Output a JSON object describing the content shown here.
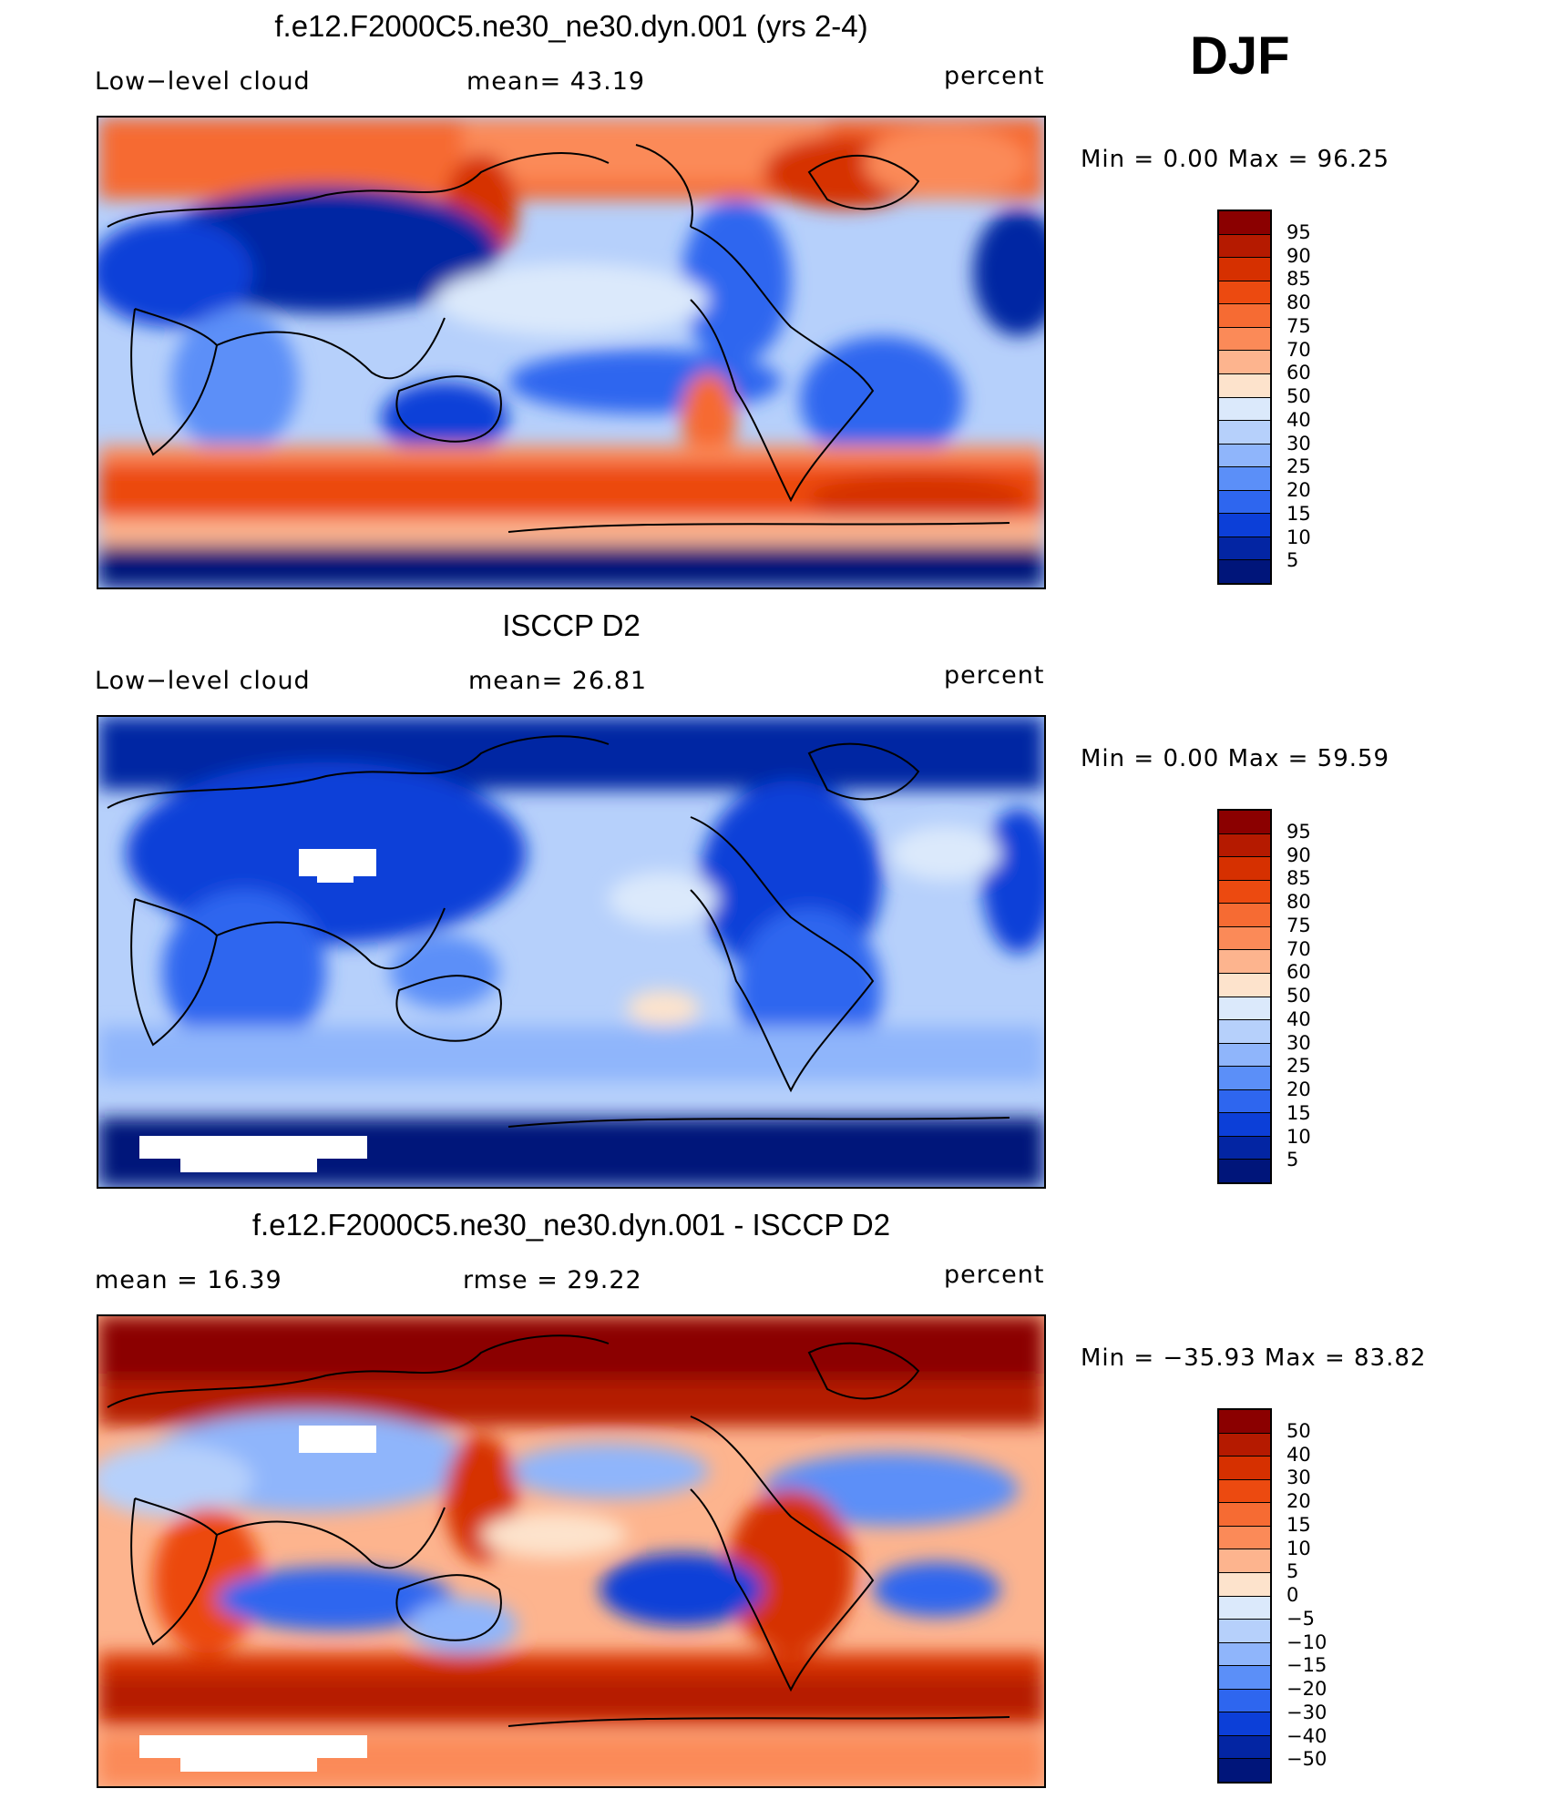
{
  "season": "DJF",
  "panels": [
    {
      "title": "f.e12.F2000C5.ne30_ne30.dyn.001 (yrs 2-4)",
      "left_label": "Low−level cloud",
      "mid_label": "mean=   43.19",
      "right_label": "percent",
      "minmax": "Min =     0.00  Max =    96.25"
    },
    {
      "title": "ISCCP D2",
      "left_label": "Low−level cloud",
      "mid_label": "mean=   26.81",
      "right_label": "percent",
      "minmax": "Min =     0.00  Max =    59.59"
    },
    {
      "title": "f.e12.F2000C5.ne30_ne30.dyn.001 - ISCCP D2",
      "left_label": "mean  =    16.39",
      "mid_label": "rmse  =    29.22",
      "right_label": "percent",
      "minmax": "Min =  −35.93  Max =    83.82"
    }
  ],
  "colorbars": {
    "abs": {
      "labels": [
        "95",
        "90",
        "85",
        "80",
        "75",
        "70",
        "60",
        "50",
        "40",
        "30",
        "25",
        "20",
        "15",
        "10",
        "5"
      ],
      "colors": [
        "#8b0000",
        "#b51a00",
        "#d63000",
        "#ec4a10",
        "#f66b33",
        "#fb8a58",
        "#fdb48e",
        "#fde3cc",
        "#dbe9fb",
        "#b6d0fb",
        "#8fb5fb",
        "#5b8ff8",
        "#2e66ef",
        "#0c3fd8",
        "#0325a3",
        "#00157a"
      ]
    },
    "diff": {
      "labels": [
        "50",
        "40",
        "30",
        "20",
        "15",
        "10",
        "5",
        "0",
        "−5",
        "−10",
        "−15",
        "−20",
        "−30",
        "−40",
        "−50"
      ],
      "colors": [
        "#8b0000",
        "#b51a00",
        "#d63000",
        "#ec4a10",
        "#f66b33",
        "#fb8a58",
        "#fdb48e",
        "#fde3cc",
        "#dbe9fb",
        "#b6d0fb",
        "#8fb5fb",
        "#5b8ff8",
        "#2e66ef",
        "#0c3fd8",
        "#0325a3",
        "#00157a"
      ]
    }
  },
  "chart_data": [
    {
      "type": "heatmap",
      "title": "f.e12.F2000C5.ne30_ne30.dyn.001 (yrs 2-4)",
      "variable": "Low−level cloud",
      "units": "percent",
      "mean": 43.19,
      "min": 0.0,
      "max": 96.25,
      "levels": [
        5,
        10,
        15,
        20,
        25,
        30,
        40,
        50,
        60,
        70,
        75,
        80,
        85,
        90,
        95
      ]
    },
    {
      "type": "heatmap",
      "title": "ISCCP D2",
      "variable": "Low−level cloud",
      "units": "percent",
      "mean": 26.81,
      "min": 0.0,
      "max": 59.59,
      "levels": [
        5,
        10,
        15,
        20,
        25,
        30,
        40,
        50,
        60,
        70,
        75,
        80,
        85,
        90,
        95
      ]
    },
    {
      "type": "heatmap",
      "title": "f.e12.F2000C5.ne30_ne30.dyn.001 - ISCCP D2",
      "units": "percent",
      "mean": 16.39,
      "rmse": 29.22,
      "min": -35.93,
      "max": 83.82,
      "levels": [
        -50,
        -40,
        -30,
        -20,
        -15,
        -10,
        -5,
        0,
        5,
        10,
        15,
        20,
        30,
        40,
        50
      ]
    }
  ]
}
